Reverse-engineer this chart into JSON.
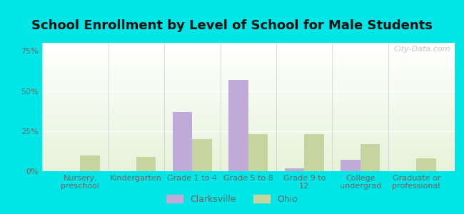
{
  "title": "School Enrollment by Level of School for Male Students",
  "categories": [
    "Nursery,\npreschool",
    "Kindergarten",
    "Grade 1 to 4",
    "Grade 5 to 8",
    "Grade 9 to\n12",
    "College\nundergrad",
    "Graduate or\nprofessional"
  ],
  "clarksville": [
    0.0,
    0.0,
    37.0,
    57.0,
    2.0,
    7.0,
    0.0
  ],
  "ohio": [
    10.0,
    9.0,
    20.0,
    23.0,
    23.0,
    17.0,
    8.0
  ],
  "clarksville_color": "#c0aad8",
  "ohio_color": "#c8d4a0",
  "ylim": [
    0,
    80
  ],
  "yticks": [
    0,
    25,
    50,
    75
  ],
  "ytick_labels": [
    "0%",
    "25%",
    "50%",
    "75%"
  ],
  "background_color": "#00e5e5",
  "title_fontsize": 13,
  "tick_fontsize": 8,
  "legend_fontsize": 9,
  "bar_width": 0.35,
  "watermark": "City-Data.com"
}
